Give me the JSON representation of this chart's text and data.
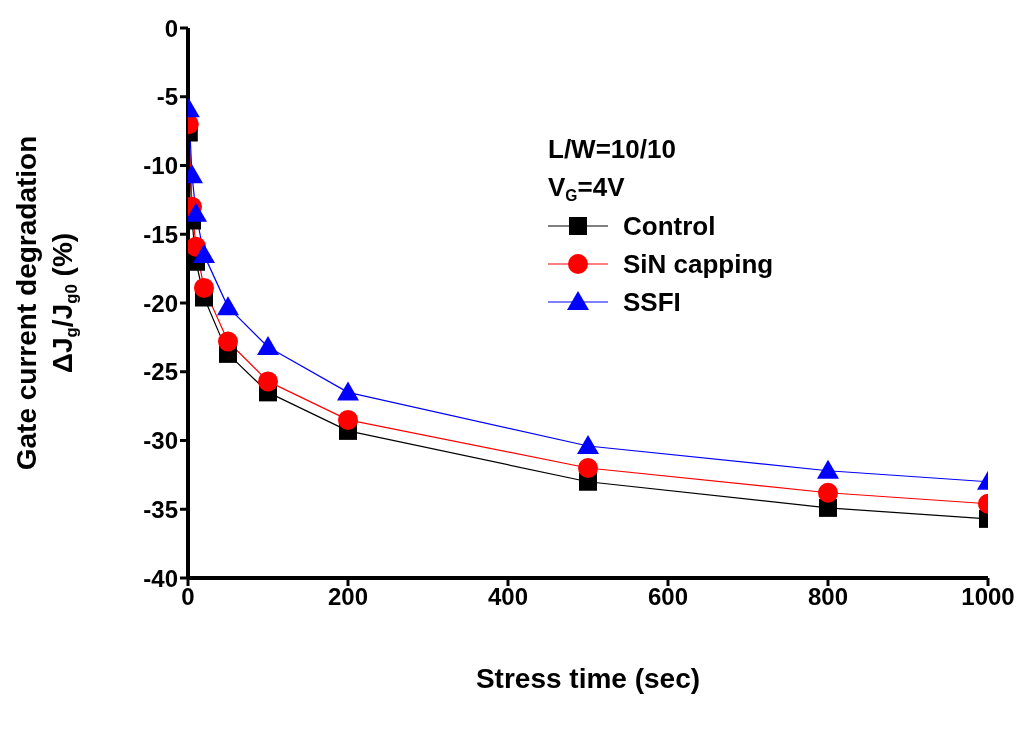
{
  "chart_data": {
    "type": "line",
    "xlabel": "Stress time (sec)",
    "ylabel": "Gate current degradation\nΔJ$_{g}$/J$_{g0}$ (%)",
    "x": [
      1,
      5,
      10,
      20,
      50,
      100,
      200,
      500,
      800,
      1000
    ],
    "xlim": [
      0,
      1000
    ],
    "xticks": [
      0,
      200,
      400,
      600,
      800,
      1000
    ],
    "ylim": [
      -40,
      0
    ],
    "yticks": [
      -40,
      -35,
      -30,
      -25,
      -20,
      -15,
      -10,
      -5,
      0
    ],
    "grid": false,
    "legend": "top right",
    "legend_title": "L/W=10/10\nV$_{G}$=4V",
    "series": [
      {
        "name": "Control",
        "color": "#000000",
        "marker": "square",
        "values": [
          -7.6,
          -14,
          -17,
          -19.6,
          -23.7,
          -26.5,
          -29.3,
          -33,
          -34.9,
          -35.7
        ]
      },
      {
        "name": "SiN capping",
        "color": "#ff0000",
        "marker": "circle",
        "values": [
          -7,
          -13,
          -15.9,
          -18.9,
          -22.8,
          -25.7,
          -28.5,
          -32,
          -33.8,
          -34.6
        ]
      },
      {
        "name": "SSFI",
        "color": "#0000ff",
        "marker": "triangle",
        "values": [
          -5.9,
          -10.7,
          -13.5,
          -16.5,
          -20.3,
          -23.2,
          -26.5,
          -30.4,
          -32.2,
          -33
        ]
      }
    ]
  }
}
